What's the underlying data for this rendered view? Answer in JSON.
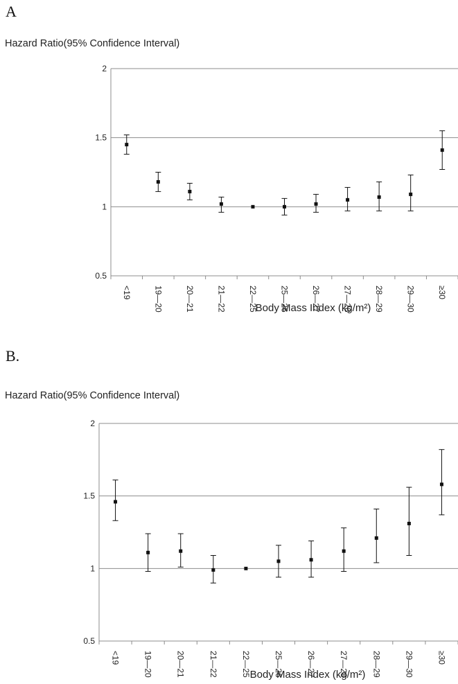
{
  "chart_data": [
    {
      "panel": "A",
      "type": "scatter",
      "error_bars": true,
      "ylabel": "Hazard Ratio(95% Confidence  Interval)",
      "xlabel": "Body Mass Index (kg/m²)",
      "categories": [
        "<19",
        "19—20",
        "20—21",
        "21—22",
        "22—25",
        "25—26",
        "26—27",
        "27—28",
        "28—29",
        "29—30",
        "≥30"
      ],
      "y_ticks": [
        "0.5",
        "1",
        "1.5",
        "2"
      ],
      "ylim": [
        0.5,
        2
      ],
      "grid": true,
      "series": [
        {
          "values": [
            1.45,
            1.18,
            1.11,
            1.02,
            1.0,
            1.0,
            1.02,
            1.05,
            1.07,
            1.09,
            1.41
          ],
          "lower": [
            1.38,
            1.11,
            1.05,
            0.96,
            1.0,
            0.94,
            0.96,
            0.97,
            0.97,
            0.97,
            1.27
          ],
          "upper": [
            1.52,
            1.25,
            1.17,
            1.07,
            1.0,
            1.06,
            1.09,
            1.14,
            1.18,
            1.23,
            1.55
          ]
        }
      ]
    },
    {
      "panel": "B.",
      "type": "scatter",
      "error_bars": true,
      "ylabel": "Hazard Ratio(95% Confidence  Interval)",
      "xlabel": "Body Mass Index (kg/m²)",
      "categories": [
        "<19",
        "19—20",
        "20—21",
        "21—22",
        "22—25",
        "25—26",
        "26—27",
        "27—28",
        "28—29",
        "29—30",
        "≥30"
      ],
      "y_ticks": [
        "0.5",
        "1",
        "1.5",
        "2"
      ],
      "ylim": [
        0.5,
        2
      ],
      "grid": true,
      "series": [
        {
          "values": [
            1.46,
            1.11,
            1.12,
            0.99,
            1.0,
            1.05,
            1.06,
            1.12,
            1.21,
            1.31,
            1.58
          ],
          "lower": [
            1.33,
            0.98,
            1.01,
            0.9,
            1.0,
            0.94,
            0.94,
            0.98,
            1.04,
            1.09,
            1.37
          ],
          "upper": [
            1.61,
            1.24,
            1.24,
            1.09,
            1.0,
            1.16,
            1.19,
            1.28,
            1.41,
            1.56,
            1.82
          ]
        }
      ]
    }
  ]
}
